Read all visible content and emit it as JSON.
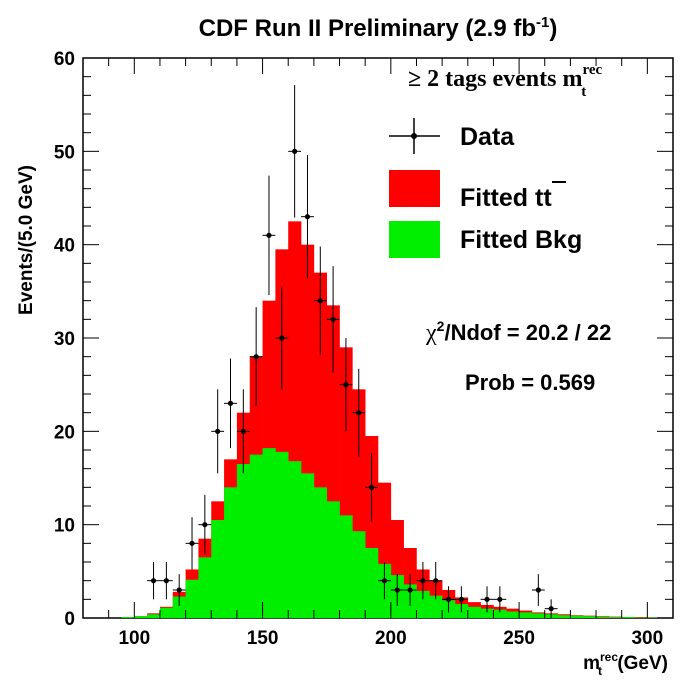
{
  "chart_data": {
    "type": "bar",
    "title": {
      "main": "CDF Run II Preliminary (2.9 fb",
      "sup": "-1",
      "end": ")"
    },
    "ylabel": "Events/(5.0 GeV)",
    "xlabel": {
      "main": "m",
      "sub": "t",
      "sup": "rec",
      "unit": " (GeV)"
    },
    "xlim": [
      80,
      310
    ],
    "ylim": [
      0,
      60
    ],
    "x_ticks": [
      100,
      150,
      200,
      250,
      300
    ],
    "y_ticks": [
      0,
      10,
      20,
      30,
      40,
      50,
      60
    ],
    "bin_width": 5,
    "bins_start": [
      95,
      100,
      105,
      110,
      115,
      120,
      125,
      130,
      135,
      140,
      145,
      150,
      155,
      160,
      165,
      170,
      175,
      180,
      185,
      190,
      195,
      200,
      205,
      210,
      215,
      220,
      225,
      230,
      235,
      240,
      245,
      250,
      255,
      260,
      265,
      270,
      275,
      280,
      285,
      290,
      295,
      300
    ],
    "stack_total": [
      0.1,
      0.2,
      0.5,
      1.2,
      2.8,
      5.2,
      8.5,
      12.5,
      17,
      22,
      28,
      34,
      39.5,
      42.5,
      40,
      37,
      33.5,
      29,
      24.5,
      19.5,
      14.5,
      10.5,
      7.5,
      5.2,
      4,
      3,
      2.2,
      1.7,
      1.4,
      1.2,
      1,
      0.8,
      0.6,
      0.5,
      0.4,
      0.3,
      0.25,
      0.2,
      0.15,
      0.1,
      0.1,
      0.05
    ],
    "series": [
      {
        "name": "Fitted tt",
        "color": "#ff0000"
      },
      {
        "name": "Fitted Bkg",
        "color": "#00ee00",
        "values": [
          0.1,
          0.2,
          0.4,
          1.1,
          2.3,
          4.1,
          6.5,
          10.5,
          14,
          16.5,
          17.5,
          18.2,
          17.8,
          16.8,
          15.5,
          14,
          12.5,
          11,
          9.3,
          7.5,
          5.8,
          4.6,
          3.6,
          2.9,
          2.4,
          1.9,
          1.5,
          1.2,
          1,
          0.9,
          0.7,
          0.6,
          0.5,
          0.4,
          0.3,
          0.25,
          0.2,
          0.15,
          0.1,
          0.1,
          0.05,
          0.05
        ]
      }
    ],
    "data_points": [
      {
        "x": 107.5,
        "y": 4,
        "err": 2
      },
      {
        "x": 112.5,
        "y": 4,
        "err": 2
      },
      {
        "x": 117.5,
        "y": 3,
        "err": 1.7
      },
      {
        "x": 122.5,
        "y": 8,
        "err": 2.8
      },
      {
        "x": 127.5,
        "y": 10,
        "err": 3.2
      },
      {
        "x": 132.5,
        "y": 20,
        "err": 4.5
      },
      {
        "x": 137.5,
        "y": 23,
        "err": 4.8
      },
      {
        "x": 142.5,
        "y": 20,
        "err": 4.5
      },
      {
        "x": 147.5,
        "y": 28,
        "err": 5.3
      },
      {
        "x": 152.5,
        "y": 41,
        "err": 6.4
      },
      {
        "x": 157.5,
        "y": 30,
        "err": 5.5
      },
      {
        "x": 162.5,
        "y": 50,
        "err": 7.1
      },
      {
        "x": 167.5,
        "y": 43,
        "err": 6.6
      },
      {
        "x": 172.5,
        "y": 34,
        "err": 5.8
      },
      {
        "x": 177.5,
        "y": 32,
        "err": 5.7
      },
      {
        "x": 182.5,
        "y": 25,
        "err": 5
      },
      {
        "x": 187.5,
        "y": 22,
        "err": 4.7
      },
      {
        "x": 192.5,
        "y": 14,
        "err": 3.7
      },
      {
        "x": 197.5,
        "y": 4,
        "err": 2
      },
      {
        "x": 202.5,
        "y": 3,
        "err": 1.7
      },
      {
        "x": 207.5,
        "y": 3,
        "err": 1.7
      },
      {
        "x": 212.5,
        "y": 4,
        "err": 2
      },
      {
        "x": 217.5,
        "y": 4,
        "err": 2
      },
      {
        "x": 222.5,
        "y": 2,
        "err": 1.4
      },
      {
        "x": 227.5,
        "y": 2,
        "err": 1.4
      },
      {
        "x": 237.5,
        "y": 2,
        "err": 1.4
      },
      {
        "x": 242.5,
        "y": 2,
        "err": 1.4
      },
      {
        "x": 257.5,
        "y": 3,
        "err": 1.7
      },
      {
        "x": 262.5,
        "y": 1,
        "err": 1
      }
    ],
    "legend": {
      "placement": "top-right",
      "header": {
        "prefix": "≥ 2 tags events m",
        "sub": "t",
        "sup": "rec"
      },
      "entries": [
        {
          "label": "Data",
          "kind": "marker"
        },
        {
          "label_main": "Fitted t",
          "label_bar": "t",
          "kind": "box",
          "color": "#ff0000"
        },
        {
          "label_main": "Fitted Bkg",
          "kind": "box",
          "color": "#00ee00"
        }
      ]
    },
    "annotations": {
      "chi2": {
        "chi": "χ",
        "sup": "2",
        "rest": "/Ndof = 20.2 / 22"
      },
      "prob": "Prob = 0.569"
    }
  }
}
